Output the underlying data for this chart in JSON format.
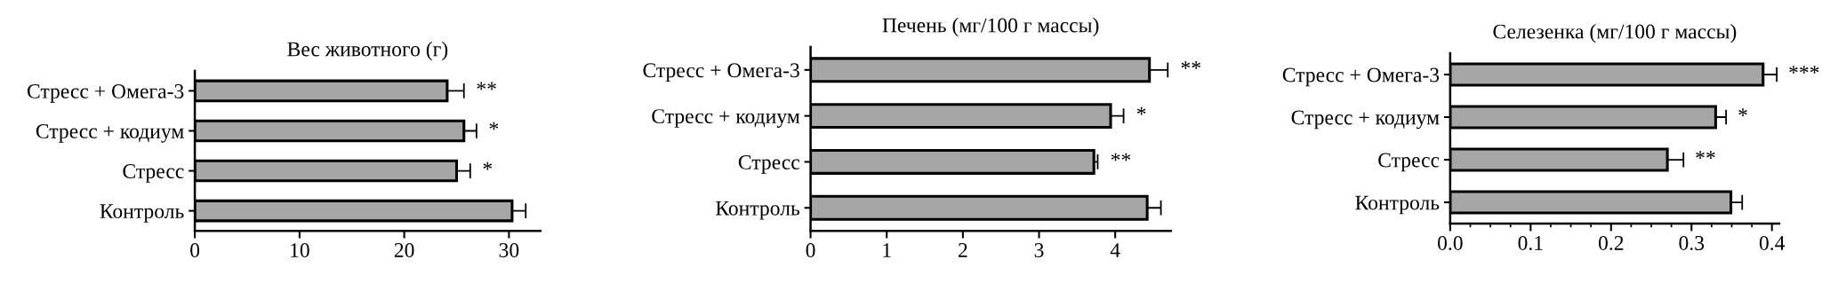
{
  "chart_data": [
    {
      "type": "bar",
      "orientation": "horizontal",
      "title": "Вес животного (г)",
      "categories": [
        "Стресс + Омега-3",
        "Стресс + кодиум",
        "Стресс",
        "Контроль"
      ],
      "values": [
        24.1,
        25.7,
        25.0,
        30.3
      ],
      "errors": [
        [
          24.1,
          25.7
        ],
        [
          25.7,
          26.9
        ],
        [
          25.0,
          26.3
        ],
        [
          30.3,
          31.6
        ]
      ],
      "color": "#a6a6a6",
      "xlim": [
        0,
        33
      ],
      "xticks": [
        0,
        10,
        20,
        30
      ],
      "grid": false,
      "annotations": [
        "**",
        "*",
        "*"
      ]
    },
    {
      "type": "bar",
      "orientation": "horizontal",
      "title": "Печень (мг/100 г массы)",
      "categories": [
        "Стресс + Омега-3",
        "Стресс + кодиум",
        "Стресс",
        "Контроль"
      ],
      "values": [
        4.45,
        3.94,
        3.72,
        4.42
      ],
      "errors": [
        [
          4.45,
          4.69
        ],
        [
          3.94,
          4.11
        ],
        [
          3.72,
          3.77
        ],
        [
          4.42,
          4.6
        ]
      ],
      "color": "#a6a6a6",
      "xlim": [
        0,
        4.73
      ],
      "xticks": [
        0,
        1,
        2,
        3,
        4
      ],
      "grid": false,
      "annotations": [
        "**",
        "*",
        "**"
      ]
    },
    {
      "type": "bar",
      "orientation": "horizontal",
      "title": "Селезенка (мг/100 г массы)",
      "categories": [
        "Стресс + Омега-3",
        "Стресс + кодиум",
        "Стресс",
        "Контроль"
      ],
      "values": [
        0.389,
        0.33,
        0.27,
        0.349
      ],
      "errors": [
        [
          0.389,
          0.406
        ],
        [
          0.33,
          0.343
        ],
        [
          0.27,
          0.29
        ],
        [
          0.349,
          0.363
        ]
      ],
      "color": "#a6a6a6",
      "xlim": [
        0,
        0.409
      ],
      "grid": false,
      "xticks": [
        {
          "value": 0,
          "label": "0.0"
        },
        {
          "value": 0.025,
          "label": null
        },
        {
          "value": 0.05,
          "label": null
        },
        {
          "value": 0.075,
          "label": null
        },
        {
          "value": 0.1,
          "label": "0.1"
        },
        {
          "value": 0.125,
          "label": null
        },
        {
          "value": 0.15,
          "label": null
        },
        {
          "value": 0.175,
          "label": null
        },
        {
          "value": 0.2,
          "label": "0.2"
        },
        {
          "value": 0.225,
          "label": null
        },
        {
          "value": 0.25,
          "label": null
        },
        {
          "value": 0.275,
          "label": null
        },
        {
          "value": 0.3,
          "label": "0.3"
        },
        {
          "value": 0.325,
          "label": null
        },
        {
          "value": 0.35,
          "label": null
        },
        {
          "value": 0.375,
          "label": null
        },
        {
          "value": 0.4,
          "label": "0.4"
        }
      ],
      "annotations": [
        "***",
        "*",
        "**"
      ]
    }
  ]
}
